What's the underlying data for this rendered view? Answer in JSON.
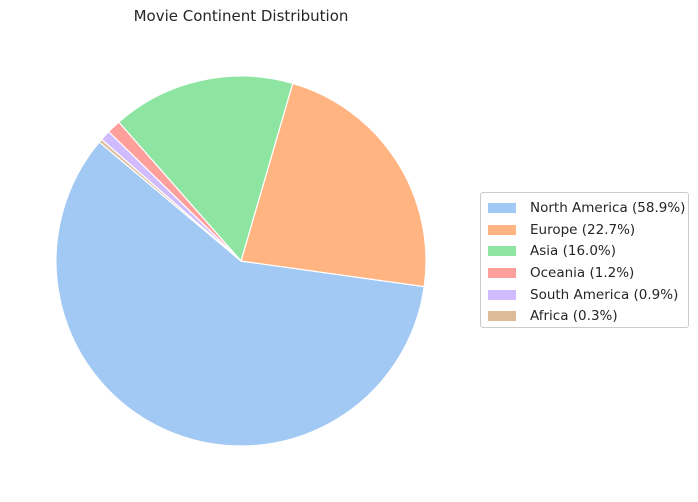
{
  "chart_data": {
    "type": "pie",
    "title": "Movie Continent Distribution",
    "start_angle_deg": 140,
    "direction": "counterclockwise",
    "legend_placement": "center-right",
    "slices": [
      {
        "label": "North America (58.9%)",
        "value": 58.9,
        "color": "#a1c9f4"
      },
      {
        "label": "Europe (22.7%)",
        "value": 22.7,
        "color": "#ffb482"
      },
      {
        "label": "Asia (16.0%)",
        "value": 16.0,
        "color": "#8de5a1"
      },
      {
        "label": "Oceania (1.2%)",
        "value": 1.2,
        "color": "#ff9f9b"
      },
      {
        "label": "South America (0.9%)",
        "value": 0.9,
        "color": "#d0bbff"
      },
      {
        "label": "Africa (0.3%)",
        "value": 0.3,
        "color": "#debb9b"
      }
    ]
  }
}
